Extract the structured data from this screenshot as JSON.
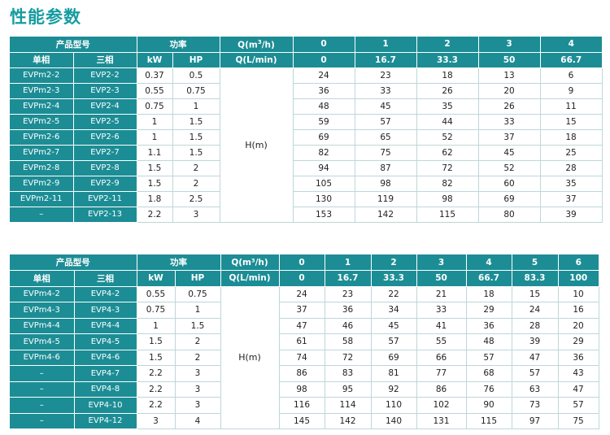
{
  "title": "性能参数",
  "table1": {
    "header": {
      "model_group": "产品型号",
      "power_group": "功率",
      "q_m3h_prefix": "Q(m",
      "q_m3h_sup": "3",
      "q_m3h_suffix": "/h)",
      "q_lmin": "Q(L/min)",
      "single_phase": "单相",
      "three_phase": "三相",
      "kw": "kW",
      "hp": "HP",
      "flow_m3h": [
        "0",
        "1",
        "2",
        "3",
        "4"
      ],
      "flow_lmin": [
        "0",
        "16.7",
        "33.3",
        "50",
        "66.7"
      ]
    },
    "head_label": "H(m)",
    "rows": [
      {
        "single": "EVPm2-2",
        "three": "EVP2-2",
        "kw": "0.37",
        "hp": "0.5",
        "heads": [
          "24",
          "23",
          "18",
          "13",
          "6"
        ]
      },
      {
        "single": "EVPm2-3",
        "three": "EVP2-3",
        "kw": "0.55",
        "hp": "0.75",
        "heads": [
          "36",
          "33",
          "26",
          "20",
          "9"
        ]
      },
      {
        "single": "EVPm2-4",
        "three": "EVP2-4",
        "kw": "0.75",
        "hp": "1",
        "heads": [
          "48",
          "45",
          "35",
          "26",
          "11"
        ]
      },
      {
        "single": "EVPm2-5",
        "three": "EVP2-5",
        "kw": "1",
        "hp": "1.5",
        "heads": [
          "59",
          "57",
          "44",
          "33",
          "15"
        ]
      },
      {
        "single": "EVPm2-6",
        "three": "EVP2-6",
        "kw": "1",
        "hp": "1.5",
        "heads": [
          "69",
          "65",
          "52",
          "37",
          "18"
        ]
      },
      {
        "single": "EVPm2-7",
        "three": "EVP2-7",
        "kw": "1.1",
        "hp": "1.5",
        "heads": [
          "82",
          "75",
          "62",
          "45",
          "25"
        ]
      },
      {
        "single": "EVPm2-8",
        "three": "EVP2-8",
        "kw": "1.5",
        "hp": "2",
        "heads": [
          "94",
          "87",
          "72",
          "52",
          "28"
        ]
      },
      {
        "single": "EVPm2-9",
        "three": "EVP2-9",
        "kw": "1.5",
        "hp": "2",
        "heads": [
          "105",
          "98",
          "82",
          "60",
          "35"
        ]
      },
      {
        "single": "EVPm2-11",
        "three": "EVP2-11",
        "kw": "1.8",
        "hp": "2.5",
        "heads": [
          "130",
          "119",
          "98",
          "69",
          "37"
        ]
      },
      {
        "single": "–",
        "three": "EVP2-13",
        "kw": "2.2",
        "hp": "3",
        "heads": [
          "153",
          "142",
          "115",
          "80",
          "39"
        ]
      }
    ]
  },
  "table2": {
    "header": {
      "model_group": "产品型号",
      "power_group": "功率",
      "q_m3h": "Q(m³/h)",
      "q_lmin": "Q(L/min)",
      "single_phase": "单相",
      "three_phase": "三相",
      "kw": "kW",
      "hp": "HP",
      "flow_m3h": [
        "0",
        "1",
        "2",
        "3",
        "4",
        "5",
        "6"
      ],
      "flow_lmin": [
        "0",
        "16.7",
        "33.3",
        "50",
        "66.7",
        "83.3",
        "100"
      ]
    },
    "head_label": "H(m)",
    "rows": [
      {
        "single": "EVPm4-2",
        "three": "EVP4-2",
        "kw": "0.55",
        "hp": "0.75",
        "heads": [
          "24",
          "23",
          "22",
          "21",
          "18",
          "15",
          "10"
        ]
      },
      {
        "single": "EVPm4-3",
        "three": "EVP4-3",
        "kw": "0.75",
        "hp": "1",
        "heads": [
          "37",
          "36",
          "34",
          "33",
          "29",
          "24",
          "16"
        ]
      },
      {
        "single": "EVPm4-4",
        "three": "EVP4-4",
        "kw": "1",
        "hp": "1.5",
        "heads": [
          "47",
          "46",
          "45",
          "41",
          "36",
          "28",
          "20"
        ]
      },
      {
        "single": "EVPm4-5",
        "three": "EVP4-5",
        "kw": "1.5",
        "hp": "2",
        "heads": [
          "61",
          "58",
          "57",
          "55",
          "48",
          "39",
          "29"
        ]
      },
      {
        "single": "EVPm4-6",
        "three": "EVP4-6",
        "kw": "1.5",
        "hp": "2",
        "heads": [
          "74",
          "72",
          "69",
          "66",
          "57",
          "47",
          "36"
        ]
      },
      {
        "single": "–",
        "three": "EVP4-7",
        "kw": "2.2",
        "hp": "3",
        "heads": [
          "86",
          "83",
          "81",
          "77",
          "68",
          "57",
          "43"
        ]
      },
      {
        "single": "–",
        "three": "EVP4-8",
        "kw": "2.2",
        "hp": "3",
        "heads": [
          "98",
          "95",
          "92",
          "86",
          "76",
          "63",
          "47"
        ]
      },
      {
        "single": "–",
        "three": "EVP4-10",
        "kw": "2.2",
        "hp": "3",
        "heads": [
          "116",
          "114",
          "110",
          "102",
          "90",
          "73",
          "57"
        ]
      },
      {
        "single": "–",
        "three": "EVP4-12",
        "kw": "3",
        "hp": "4",
        "heads": [
          "145",
          "142",
          "140",
          "131",
          "115",
          "97",
          "75"
        ]
      }
    ]
  }
}
